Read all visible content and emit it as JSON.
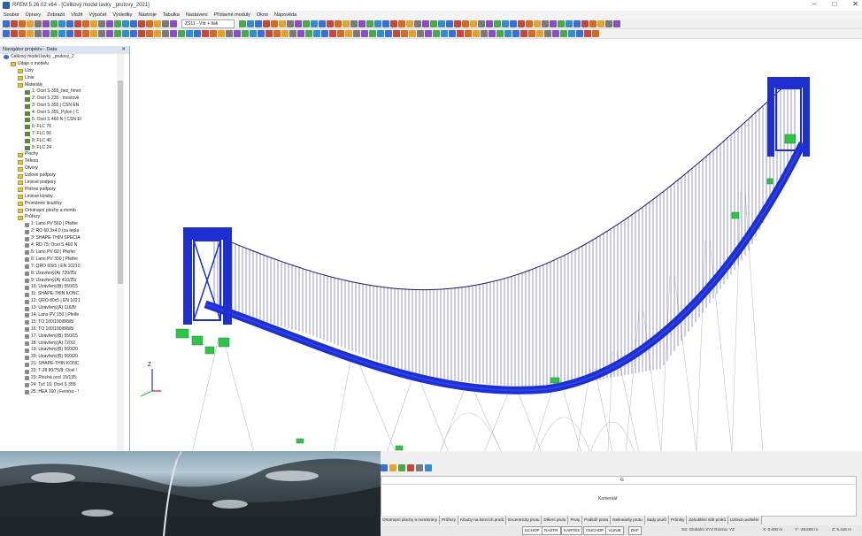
{
  "window": {
    "title": "RFEM 5.26.02 x64 - [Celkový model lavky _prutovy_2021]",
    "controls": [
      "–",
      "□",
      "✕"
    ]
  },
  "menu": [
    "Soubor",
    "Úpravy",
    "Zobrazit",
    "Vložit",
    "Výpočet",
    "Výsledky",
    "Nástroje",
    "Tabulka",
    "Nastavení",
    "Přídavné moduly",
    "Okno",
    "Nápověda"
  ],
  "toolbar": {
    "load_combo": "ZS11 - Vítr + tlak"
  },
  "navigator": {
    "title": "Navigátor projektu - Data",
    "close": "✕",
    "items": [
      {
        "label": "Celkový model lavky _prutovy_2",
        "level": 0,
        "type": "model"
      },
      {
        "label": "Údaje o modelu",
        "level": 1,
        "type": "folder"
      },
      {
        "label": "Uzly",
        "level": 2,
        "type": "folder"
      },
      {
        "label": "Linie",
        "level": 2,
        "type": "folder"
      },
      {
        "label": "Materiály",
        "level": 2,
        "type": "folder"
      },
      {
        "label": "1: Ocel S 355_bez_hmot",
        "level": 3,
        "type": "mat"
      },
      {
        "label": "2: Ocel S 235 - mostovk",
        "level": 3,
        "type": "mat"
      },
      {
        "label": "3: Ocel S 355 | ČSN EN",
        "level": 3,
        "type": "mat"
      },
      {
        "label": "4: Ocel S 355_Pylon | Č",
        "level": 3,
        "type": "mat"
      },
      {
        "label": "5: Ocel S 460 N | ČSN El",
        "level": 3,
        "type": "mat"
      },
      {
        "label": "6: FLC 76",
        "level": 3,
        "type": "mat"
      },
      {
        "label": "7: FLC 56",
        "level": 3,
        "type": "mat"
      },
      {
        "label": "8: FLC 40",
        "level": 3,
        "type": "mat"
      },
      {
        "label": "9: FLC 24",
        "level": 3,
        "type": "mat"
      },
      {
        "label": "Plochy",
        "level": 2,
        "type": "folder"
      },
      {
        "label": "Tělesa",
        "level": 2,
        "type": "folder"
      },
      {
        "label": "Otvory",
        "level": 2,
        "type": "folder"
      },
      {
        "label": "Uzlové podpory",
        "level": 2,
        "type": "folder"
      },
      {
        "label": "Liniové podpory",
        "level": 2,
        "type": "folder"
      },
      {
        "label": "Plošné podpory",
        "level": 2,
        "type": "folder"
      },
      {
        "label": "Liniové klouby",
        "level": 2,
        "type": "folder"
      },
      {
        "label": "Proměnné tloušťky",
        "level": 2,
        "type": "folder"
      },
      {
        "label": "Ortotropní plochy a memb",
        "level": 2,
        "type": "folder"
      },
      {
        "label": "Průřezy",
        "level": 2,
        "type": "folder"
      },
      {
        "label": "1: Lano PV 560 | Pfeifer",
        "level": 3,
        "type": "sec"
      },
      {
        "label": "2: RO 60.3x4.0 (za tepla",
        "level": 3,
        "type": "sec"
      },
      {
        "label": "3: SHAPE-THIN SPECIA",
        "level": 3,
        "type": "sec"
      },
      {
        "label": "4: RD 75; Ocel S 460 N",
        "level": 3,
        "type": "sec"
      },
      {
        "label": "5: Lano PV 60 | Pfeifer",
        "level": 3,
        "type": "sec"
      },
      {
        "label": "6: Lano PV 300 | Pfeifer",
        "level": 3,
        "type": "sec"
      },
      {
        "label": "7: QRO 60x5 | EN 10210",
        "level": 3,
        "type": "sec"
      },
      {
        "label": "8: Uzavřený(A) 720/25/",
        "level": 3,
        "type": "sec"
      },
      {
        "label": "9: Uzavřený(A) 410/25/",
        "level": 3,
        "type": "sec"
      },
      {
        "label": "10: Uzavřený(B) 550/15",
        "level": 3,
        "type": "sec"
      },
      {
        "label": "11: SHAPE-THIN KONC",
        "level": 3,
        "type": "sec"
      },
      {
        "label": "12: QRO 80x5 | EN 1021",
        "level": 3,
        "type": "sec"
      },
      {
        "label": "13: Uzavřený(A) 116/8/",
        "level": 3,
        "type": "sec"
      },
      {
        "label": "14: Lano PV 150 | Pfeife",
        "level": 3,
        "type": "sec"
      },
      {
        "label": "15: TO 100/100/8/8/8/",
        "level": 3,
        "type": "sec"
      },
      {
        "label": "16: TO 100/100/8/8/8/",
        "level": 3,
        "type": "sec"
      },
      {
        "label": "17: Uzavřený(B) 550/15",
        "level": 3,
        "type": "sec"
      },
      {
        "label": "18: Uzavřený(A) 720/2",
        "level": 3,
        "type": "sec"
      },
      {
        "label": "19: Uzavřený(B) 560/20",
        "level": 3,
        "type": "sec"
      },
      {
        "label": "20: Uzavřený(B) 560/20",
        "level": 3,
        "type": "sec"
      },
      {
        "label": "21: SHAPE-THIN KONC",
        "level": 3,
        "type": "sec"
      },
      {
        "label": "22: T-28 80/75/8; Ocel !",
        "level": 3,
        "type": "sec"
      },
      {
        "label": "23: Plochá ocel 15/135;",
        "level": 3,
        "type": "sec"
      },
      {
        "label": "24: Tyč 16; Ocel S 355",
        "level": 3,
        "type": "sec"
      },
      {
        "label": "25: HEA 160 | Ferona - !",
        "level": 3,
        "type": "sec"
      }
    ]
  },
  "viewport": {
    "axis_labels": {
      "z": "Z",
      "x": "X",
      "y": "Y"
    }
  },
  "table": {
    "column_header": "G",
    "comment_label": "Komentář",
    "tabs": [
      "Ortotropní plochy a membrány",
      "Průřezy",
      "Klouby na koncích prutů",
      "Excentricity prutu",
      "Dělení prutu",
      "Pruty",
      "Podloží prutu",
      "Nelineárity prutu",
      "Sady prutů",
      "Průniky",
      "Zahuštění sítě prvků",
      "Uzlová uvolnění"
    ]
  },
  "statusbar": {
    "toggles": [
      "UCHOP",
      "RASTR",
      "KARTÉZ",
      "OUCHOP",
      "VLINIE",
      "DXF"
    ],
    "coord_system": "SS: Globální XYZ Rovina: YZ",
    "x": "X: 0.000 m",
    "y": "Y: -28.600 m",
    "z": "Z: 5.416 m"
  },
  "colors": {
    "structure_blue": "#1d2fd1",
    "support_green": "#2ec44a",
    "cable_dark": "#1a1a6e"
  }
}
